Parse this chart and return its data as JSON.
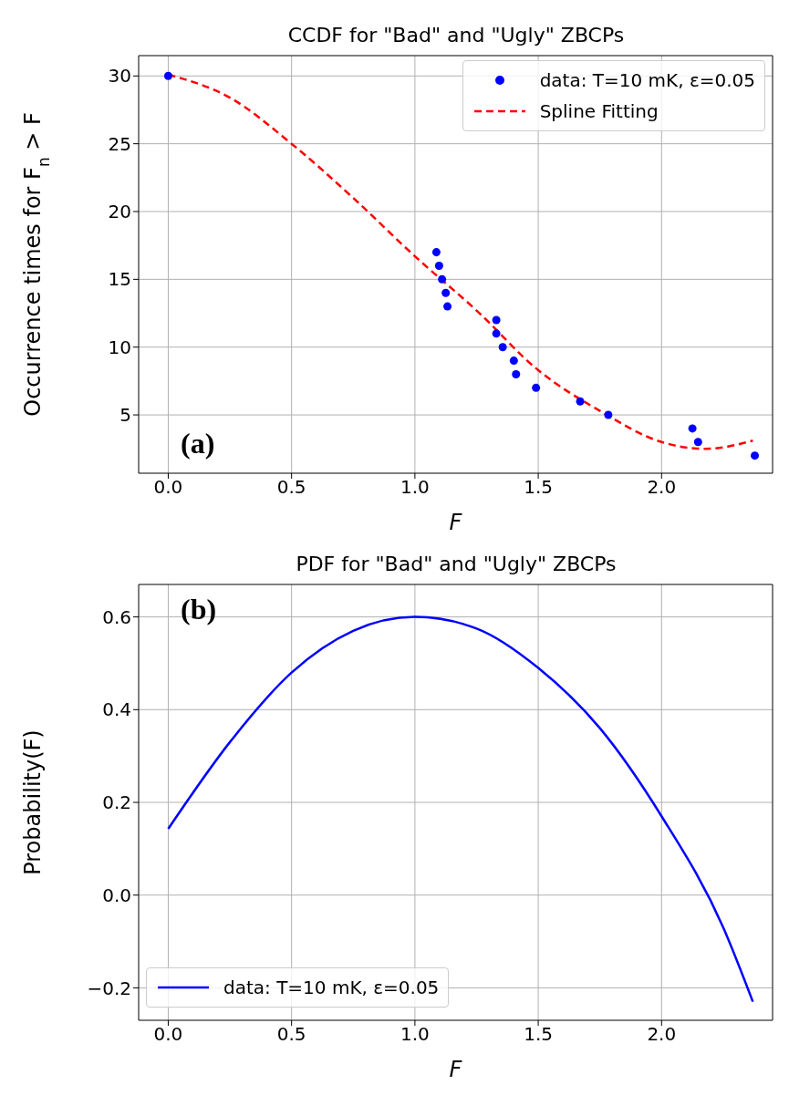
{
  "chart_data": [
    {
      "type": "scatter",
      "title": "CCDF for \"Bad\" and \"Ugly\" ZBCPs",
      "xlabel": "F",
      "ylabel": "Occurrence times for F$_{n}$ > F",
      "annotations": [
        "(a)"
      ],
      "xlim": [
        -0.12,
        2.45
      ],
      "ylim": [
        0.7,
        31.5
      ],
      "xticks": [
        {
          "value": 0,
          "label": "0.0"
        },
        {
          "value": 0.5,
          "label": "0.5"
        },
        {
          "value": 1,
          "label": "1.0"
        },
        {
          "value": 1.5,
          "label": "1.5"
        },
        {
          "value": 2,
          "label": "2.0"
        }
      ],
      "yticks": [
        5,
        10,
        15,
        20,
        25,
        30
      ],
      "grid": true,
      "legend": "top right",
      "series": [
        {
          "name": "data: T=10 mK, ε=0.05",
          "marker": "circle",
          "color": "#0000ff",
          "x": [
            0,
            1.087,
            1.098,
            1.11,
            1.125,
            1.132,
            1.33,
            1.33,
            1.356,
            1.401,
            1.41,
            1.491,
            1.67,
            1.784,
            2.125,
            2.148,
            2.378
          ],
          "values": [
            30,
            17,
            16,
            15,
            14,
            13,
            12,
            11,
            10,
            9,
            8,
            7,
            6,
            5,
            4,
            3,
            2
          ]
        },
        {
          "name": "Spline Fitting",
          "type": "line",
          "marker": "none",
          "line_style": "dashed",
          "color": "#ff0000",
          "x": [
            0,
            0.25,
            0.5,
            0.75,
            1,
            1.25,
            1.5,
            1.75,
            2,
            2.18,
            2.37
          ],
          "values": [
            30.1,
            28.4,
            25,
            21,
            16.7,
            12.7,
            8.3,
            5.3,
            3,
            2.5,
            3.1
          ]
        }
      ]
    },
    {
      "type": "line",
      "title": "PDF for \"Bad\" and \"Ugly\" ZBCPs",
      "xlabel": "F",
      "ylabel": "Probability(F)",
      "annotations": [
        "(b)"
      ],
      "xlim": [
        -0.12,
        2.45
      ],
      "ylim": [
        -0.27,
        0.67
      ],
      "xticks": [
        {
          "value": 0,
          "label": "0.0"
        },
        {
          "value": 0.5,
          "label": "0.5"
        },
        {
          "value": 1,
          "label": "1.0"
        },
        {
          "value": 1.5,
          "label": "1.5"
        },
        {
          "value": 2,
          "label": "2.0"
        }
      ],
      "yticks": [
        {
          "value": -0.2,
          "label": "−0.2"
        },
        {
          "value": 0,
          "label": "0.0"
        },
        {
          "value": 0.2,
          "label": "0.2"
        },
        {
          "value": 0.4,
          "label": "0.4"
        },
        {
          "value": 0.6,
          "label": "0.6"
        }
      ],
      "grid": true,
      "legend": "bottom left",
      "series": [
        {
          "name": "data: T=10 mK, ε=0.05",
          "marker": "none",
          "line_style": "solid",
          "color": "#0000ff",
          "x": [
            0,
            0.25,
            0.5,
            0.75,
            1,
            1.25,
            1.5,
            1.75,
            2,
            2.25,
            2.37
          ],
          "values": [
            0.143,
            0.33,
            0.48,
            0.57,
            0.6,
            0.575,
            0.49,
            0.36,
            0.17,
            -0.07,
            -0.23
          ]
        }
      ]
    }
  ]
}
